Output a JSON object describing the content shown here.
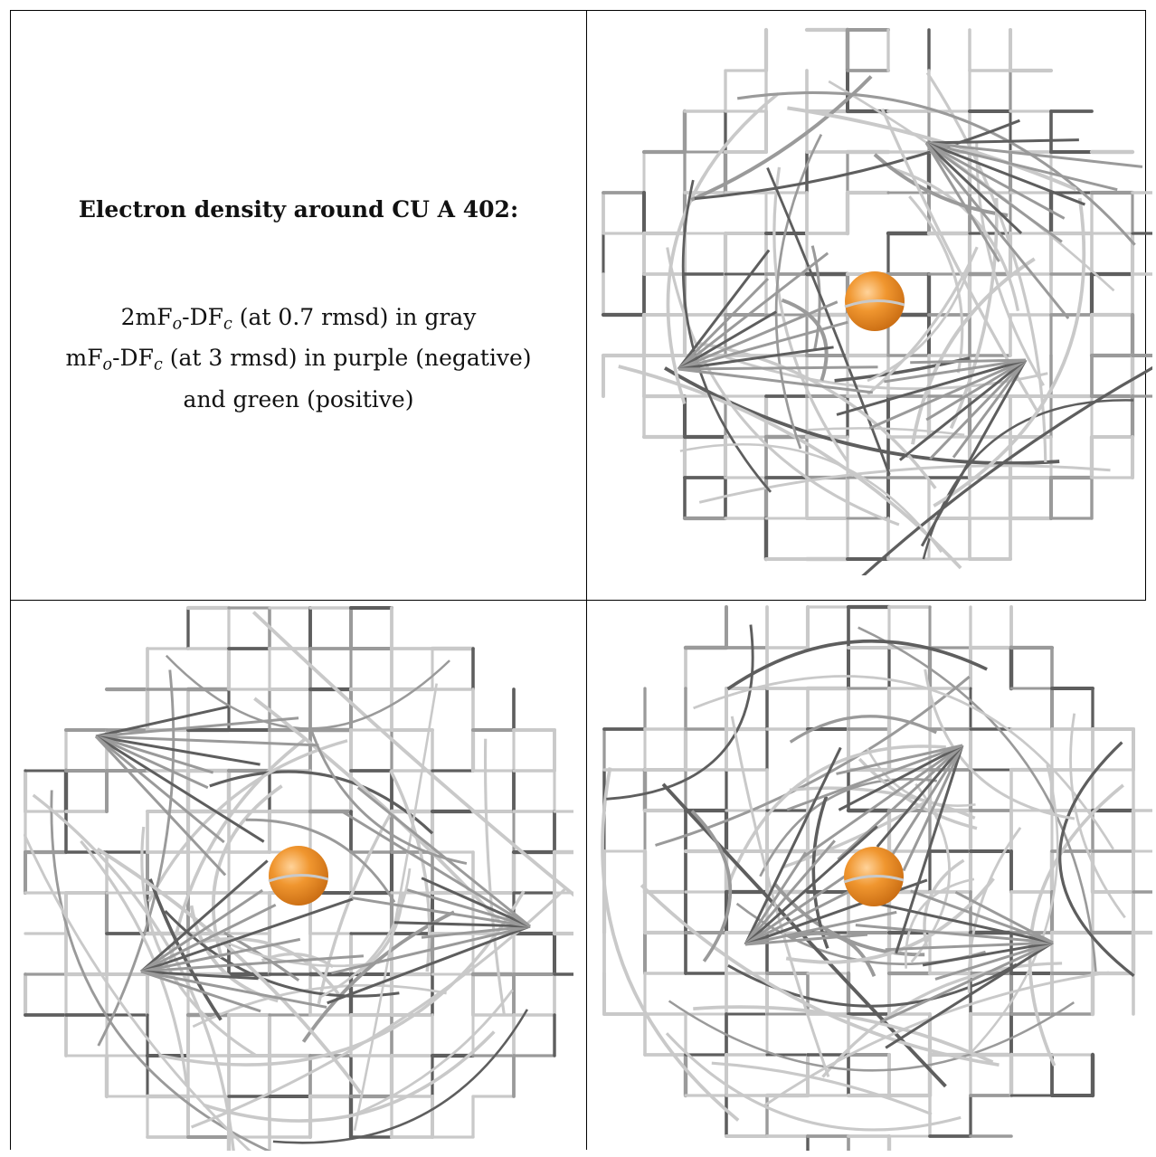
{
  "caption": {
    "title": "Electron density around CU A 402:",
    "line1": {
      "prefix": "2mF",
      "sub1": "o",
      "mid": "-DF",
      "sub2": "c",
      "suffix": " (at 0.7 rmsd) in gray"
    },
    "line2": {
      "prefix": "mF",
      "sub1": "o",
      "mid": "-DF",
      "sub2": "c",
      "suffix": " (at 3 rmsd) in purple (negative)"
    },
    "line3": "and green (positive)"
  },
  "colors": {
    "mesh_light": "#c9c9c9",
    "mesh_mid": "#9a9a9a",
    "mesh_dark": "#5e5e5e",
    "atom": "#f0962f",
    "atom_shade": "#c96c12",
    "atom_highlight": "#ffd39a"
  },
  "panels": [
    {
      "name": "view-1",
      "atom": "CU A 402"
    },
    {
      "name": "view-2",
      "atom": "CU A 402"
    },
    {
      "name": "view-3",
      "atom": "CU A 402"
    }
  ]
}
